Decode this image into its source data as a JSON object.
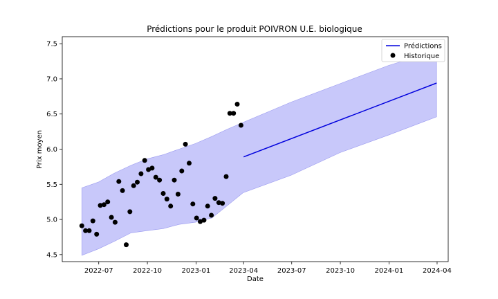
{
  "chart_data": {
    "type": "line",
    "title": "Prédictions pour le produit POIVRON U.E. biologique",
    "xlabel": "Date",
    "ylabel": "Prix moyen",
    "xlim": [
      "2022-04-23",
      "2024-04-22"
    ],
    "ylim": [
      4.4,
      7.6
    ],
    "x_ticks": [
      "2022-07",
      "2022-10",
      "2023-01",
      "2023-04",
      "2023-07",
      "2023-10",
      "2024-01",
      "2024-04"
    ],
    "y_ticks": [
      4.5,
      5.0,
      5.5,
      6.0,
      6.5,
      7.0,
      7.5
    ],
    "legend": {
      "placement": "top-right",
      "entries": [
        "Prédictions",
        "Historique"
      ]
    },
    "colors": {
      "prediction": "#0000dd",
      "band": "#c8c8fa",
      "band_edge": "#9a9aef",
      "history": "#000000"
    },
    "series": [
      {
        "name": "Prédictions",
        "style": "line",
        "x": [
          "2023-04-01",
          "2024-03-31"
        ],
        "y": [
          5.89,
          6.94
        ]
      },
      {
        "name": "Historique",
        "style": "scatter",
        "x": [
          "2022-05-30",
          "2022-06-06",
          "2022-06-13",
          "2022-06-20",
          "2022-06-27",
          "2022-07-04",
          "2022-07-11",
          "2022-07-18",
          "2022-07-25",
          "2022-08-01",
          "2022-08-08",
          "2022-08-15",
          "2022-08-22",
          "2022-08-29",
          "2022-09-05",
          "2022-09-12",
          "2022-09-19",
          "2022-09-26",
          "2022-10-03",
          "2022-10-10",
          "2022-10-17",
          "2022-10-24",
          "2022-10-31",
          "2022-11-07",
          "2022-11-14",
          "2022-11-21",
          "2022-11-28",
          "2022-12-05",
          "2022-12-12",
          "2022-12-19",
          "2022-12-26",
          "2023-01-02",
          "2023-01-09",
          "2023-01-16",
          "2023-01-23",
          "2023-01-30",
          "2023-02-06",
          "2023-02-13",
          "2023-02-20",
          "2023-02-27",
          "2023-03-06",
          "2023-03-13",
          "2023-03-20",
          "2023-03-27"
        ],
        "y": [
          4.91,
          4.84,
          4.84,
          4.98,
          4.79,
          5.2,
          5.21,
          5.25,
          5.03,
          4.96,
          5.54,
          5.41,
          4.64,
          5.11,
          5.48,
          5.53,
          5.65,
          5.84,
          5.71,
          5.73,
          5.6,
          5.56,
          5.37,
          5.29,
          5.19,
          5.56,
          5.36,
          5.69,
          6.07,
          5.8,
          5.22,
          5.02,
          4.97,
          4.99,
          5.19,
          5.06,
          5.3,
          5.24,
          5.23,
          5.61,
          6.51,
          6.51,
          6.64,
          6.34
        ]
      },
      {
        "name": "",
        "style": "band",
        "x": [
          "2022-05-30",
          "2022-06-30",
          "2022-07-31",
          "2022-08-31",
          "2022-09-30",
          "2022-10-31",
          "2022-11-30",
          "2022-12-31",
          "2023-01-31",
          "2023-02-28",
          "2023-03-31",
          "2023-06-30",
          "2023-09-30",
          "2023-12-31",
          "2024-03-31"
        ],
        "lower": [
          4.49,
          4.58,
          4.69,
          4.81,
          4.84,
          4.87,
          4.93,
          4.96,
          5.02,
          5.19,
          5.38,
          5.63,
          5.95,
          6.2,
          6.46
        ],
        "upper": [
          5.45,
          5.53,
          5.66,
          5.77,
          5.86,
          5.92,
          6.0,
          6.08,
          6.18,
          6.28,
          6.38,
          6.67,
          6.93,
          7.19,
          7.4
        ]
      }
    ]
  }
}
